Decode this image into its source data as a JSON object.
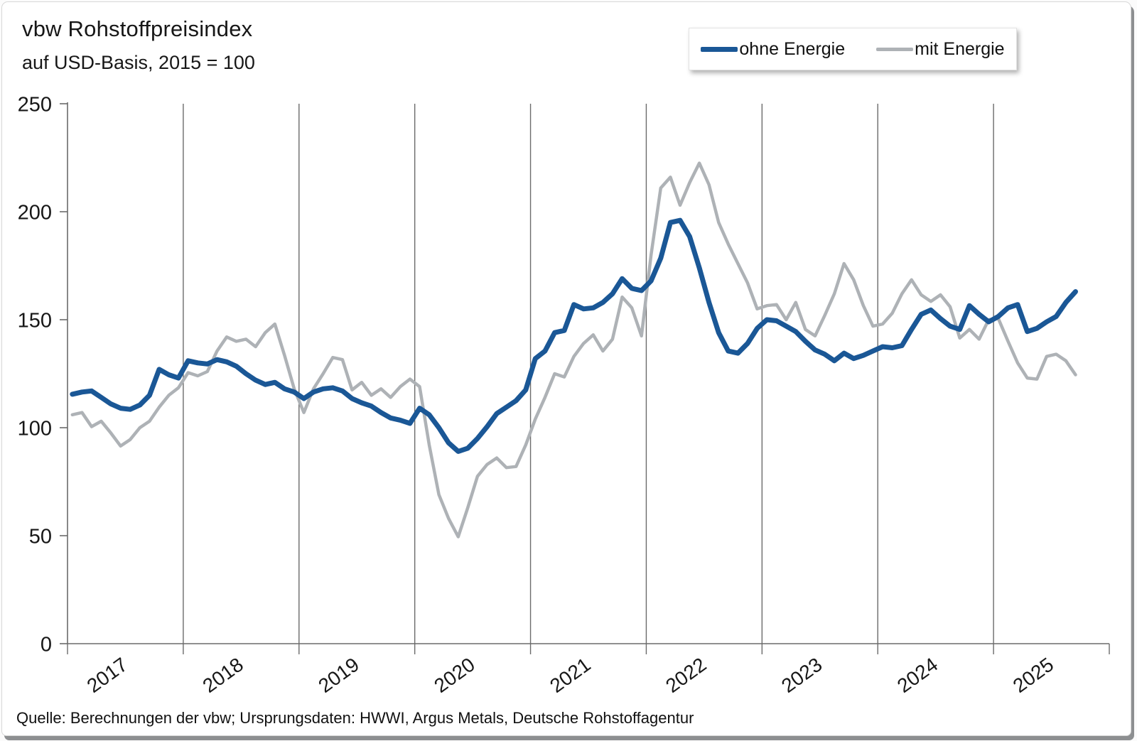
{
  "header": {
    "title": "vbw Rohstoffpreisindex",
    "subtitle": "auf USD-Basis, 2015 = 100"
  },
  "legend": {
    "items": [
      {
        "label": "ohne Energie",
        "color": "#1a5796"
      },
      {
        "label": "mit Energie",
        "color": "#aeb2b6"
      }
    ]
  },
  "footer": {
    "source": "Quelle: Berechnungen der vbw; Ursprungsdaten: HWWI, Argus Metals, Deutsche Rohstoffagentur"
  },
  "colors": {
    "axis": "#6b6b6b",
    "gridline": "#6b6b6b",
    "text": "#171717",
    "series_ohne_energie": "#1a5796",
    "series_mit_energie": "#aeb2b6"
  },
  "chart_data": {
    "type": "line",
    "title": "vbw Rohstoffpreisindex",
    "subtitle": "auf USD-Basis, 2015 = 100",
    "frequency": "monthly",
    "x_start": "2017-01",
    "x_end": "2025-09",
    "x_tick_years": [
      "2017",
      "2018",
      "2019",
      "2020",
      "2021",
      "2022",
      "2023",
      "2024",
      "2025"
    ],
    "ylim": [
      0,
      250
    ],
    "y_ticks": [
      250,
      200,
      150,
      100,
      50,
      0
    ],
    "grid": "vertical lines at year boundaries only",
    "legend_position": "top-right",
    "series": [
      {
        "name": "ohne Energie",
        "color": "#1a5796",
        "stroke_width": 7,
        "values": [
          115.5,
          116.5,
          117,
          114,
          111,
          109,
          108.5,
          110.5,
          115,
          127,
          124.5,
          123,
          131,
          130,
          129.5,
          131.5,
          130.5,
          128.5,
          125,
          122,
          120,
          121,
          118,
          116.5,
          113.5,
          116.5,
          118,
          118.5,
          117,
          113.5,
          111.5,
          110,
          107,
          104.5,
          103.5,
          102,
          109,
          106,
          100,
          93,
          89,
          90.5,
          95,
          100.5,
          106.5,
          109.5,
          112.5,
          117.5,
          132,
          135.5,
          144,
          145,
          157,
          155,
          155.5,
          158,
          162,
          169,
          164.5,
          163.5,
          168,
          178.5,
          195,
          196,
          188.5,
          174,
          158,
          144,
          135.5,
          134.5,
          139,
          146,
          150,
          149.5,
          147,
          144.5,
          140,
          136,
          134,
          131,
          134.5,
          132,
          133.5,
          135.5,
          137.5,
          137,
          138,
          145.5,
          152.5,
          154.5,
          150.5,
          147,
          145.5,
          156.5,
          152.5,
          149,
          151.5,
          155.5,
          157,
          144.5,
          146,
          149,
          151.5,
          158,
          163
        ]
      },
      {
        "name": "mit Energie",
        "color": "#aeb2b6",
        "stroke_width": 4.5,
        "values": [
          106,
          107,
          100.5,
          103,
          97.5,
          91.5,
          94.5,
          100,
          103,
          109.5,
          115,
          118.5,
          125.5,
          124,
          126,
          135.5,
          142,
          140,
          141,
          137.5,
          144,
          148,
          133.5,
          118,
          107,
          118,
          125,
          132.5,
          131.5,
          117.5,
          121,
          115,
          118,
          114,
          119,
          122.5,
          119,
          92,
          69,
          58,
          49.5,
          63,
          77.5,
          83,
          86,
          81.5,
          82,
          92,
          104,
          114,
          125,
          123.5,
          133,
          139,
          143,
          135.5,
          141,
          160.5,
          155.5,
          142.5,
          180,
          211,
          216,
          203,
          213.5,
          222.5,
          212.5,
          195,
          185,
          176,
          167,
          155,
          156.5,
          157,
          150,
          158,
          145.5,
          142.5,
          152,
          162,
          176,
          168.5,
          156.5,
          147,
          148,
          153,
          162,
          168.5,
          161.5,
          158.5,
          161.5,
          156,
          141.5,
          145.5,
          141,
          150,
          150.5,
          140,
          130,
          123,
          122.5,
          133,
          134,
          131,
          124.5
        ]
      }
    ]
  }
}
